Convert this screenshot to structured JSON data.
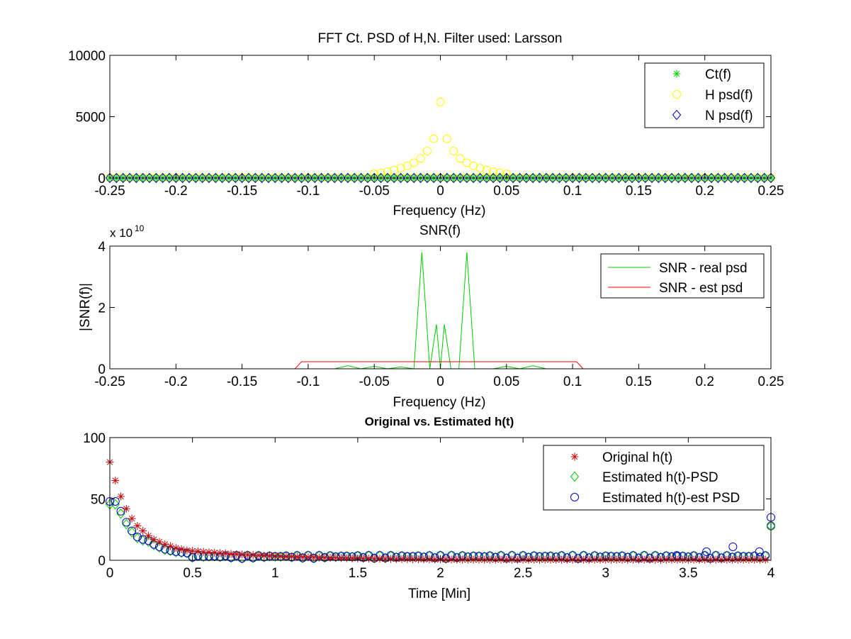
{
  "chart_data": [
    {
      "type": "scatter",
      "title": "FFT Ct. PSD of H,N. Filter used: Larsson",
      "xlabel": "Frequency (Hz)",
      "ylabel": "",
      "xlim": [
        -0.25,
        0.25
      ],
      "ylim": [
        0,
        10000
      ],
      "xticks": [
        -0.25,
        -0.2,
        -0.15,
        -0.1,
        -0.05,
        0,
        0.05,
        0.1,
        0.15,
        0.2,
        0.25
      ],
      "xtick_labels": [
        "-0.25",
        "-0.2",
        "-0.15",
        "-0.1",
        "-0.05",
        "0",
        "0.05",
        "0.1",
        "0.15",
        "0.2",
        "0.25"
      ],
      "yticks": [
        0,
        5000,
        10000
      ],
      "ytick_labels": [
        "0",
        "5000",
        "10000"
      ],
      "legend_position": "top-right",
      "series": [
        {
          "name": "Ct(f)",
          "marker": "asterisk",
          "color": "#00cc00",
          "points": "ct"
        },
        {
          "name": "H psd(f)",
          "marker": "circle",
          "color": "#ffff00",
          "points": "h"
        },
        {
          "name": "N psd(f)",
          "marker": "diamond",
          "color": "#0000cc",
          "points": "n"
        }
      ],
      "h_psd_peak": {
        "x": [
          0.0,
          -0.005,
          0.005,
          -0.01,
          0.01,
          -0.015,
          0.015,
          -0.02,
          0.02,
          -0.025,
          0.025,
          -0.03,
          0.03,
          -0.035,
          0.035,
          -0.04,
          0.04,
          -0.045,
          0.045,
          -0.05,
          0.05
        ],
        "y": [
          6200,
          3200,
          3200,
          2200,
          2200,
          1600,
          1600,
          1250,
          1250,
          1000,
          1000,
          800,
          800,
          650,
          650,
          520,
          520,
          420,
          420,
          340,
          340
        ]
      }
    },
    {
      "type": "line",
      "title": "SNR(f)",
      "xlabel": "Frequency (Hz)",
      "ylabel": "|SNR(f)|",
      "xlim": [
        -0.25,
        0.25
      ],
      "ylim": [
        0,
        4
      ],
      "y_multiplier": "x 10",
      "y_multiplier_exp": "10",
      "xticks": [
        -0.25,
        -0.2,
        -0.15,
        -0.1,
        -0.05,
        0,
        0.05,
        0.1,
        0.15,
        0.2,
        0.25
      ],
      "xtick_labels": [
        "-0.25",
        "-0.2",
        "-0.15",
        "-0.1",
        "-0.05",
        "0",
        "0.05",
        "0.1",
        "0.15",
        "0.2",
        "0.25"
      ],
      "yticks": [
        0,
        2,
        4
      ],
      "ytick_labels": [
        "0",
        "2",
        "4"
      ],
      "legend_position": "top-right",
      "series": [
        {
          "name": "SNR - real psd",
          "color": "#00cc00",
          "x": [
            -0.25,
            -0.08,
            -0.07,
            -0.06,
            -0.05,
            -0.04,
            -0.03,
            -0.02,
            -0.014,
            -0.008,
            -0.003,
            0.0,
            0.003,
            0.008,
            0.014,
            0.02,
            0.026,
            0.03,
            0.04,
            0.05,
            0.06,
            0.07,
            0.08,
            0.25
          ],
          "y": [
            0,
            0,
            0.1,
            0,
            0.08,
            0,
            0.06,
            0,
            3.8,
            0,
            1.45,
            0,
            1.45,
            0,
            0,
            3.8,
            0,
            0,
            0,
            0.08,
            0,
            0.1,
            0,
            0
          ]
        },
        {
          "name": "SNR - est psd",
          "color": "#ff0000",
          "x": [
            -0.25,
            -0.11,
            -0.105,
            0.103,
            0.108,
            0.25
          ],
          "y": [
            0,
            0,
            0.23,
            0.23,
            0,
            0
          ]
        }
      ]
    },
    {
      "type": "scatter",
      "title": "Original vs. Estimated h(t)",
      "xlabel": "Time [Min]",
      "ylabel": "",
      "xlim": [
        0,
        4
      ],
      "ylim": [
        0,
        100
      ],
      "xticks": [
        0,
        0.5,
        1,
        1.5,
        2,
        2.5,
        3,
        3.5,
        4
      ],
      "xtick_labels": [
        "0",
        "0.5",
        "1",
        "1.5",
        "2",
        "2.5",
        "3",
        "3.5",
        "4"
      ],
      "yticks": [
        0,
        50,
        100
      ],
      "ytick_labels": [
        "0",
        "50",
        "100"
      ],
      "legend_position": "top-right",
      "series": [
        {
          "name": "Original h(t)",
          "marker": "asterisk",
          "color": "#cc0000"
        },
        {
          "name": "Estimated h(t)-PSD",
          "marker": "diamond",
          "color": "#00cc00"
        },
        {
          "name": "Estimated h(t)-est PSD",
          "marker": "circle",
          "color": "#0000cc"
        }
      ],
      "original_ht_head": [
        80,
        65,
        52,
        42,
        34,
        28,
        24,
        20,
        17,
        15,
        13,
        11.5,
        10,
        9,
        8
      ],
      "estimated_head": [
        48,
        48,
        40,
        31,
        24,
        19,
        17,
        16,
        13,
        11,
        9,
        8,
        7,
        6.5,
        6
      ],
      "estimated_tail": [
        {
          "x": 3.43,
          "y": 4
        },
        {
          "x": 3.61,
          "y": 7
        },
        {
          "x": 3.77,
          "y": 11
        },
        {
          "x": 3.93,
          "y": 7
        },
        {
          "x": 4.0,
          "y": 28
        },
        {
          "x": 4.0,
          "y": 35
        }
      ]
    }
  ]
}
